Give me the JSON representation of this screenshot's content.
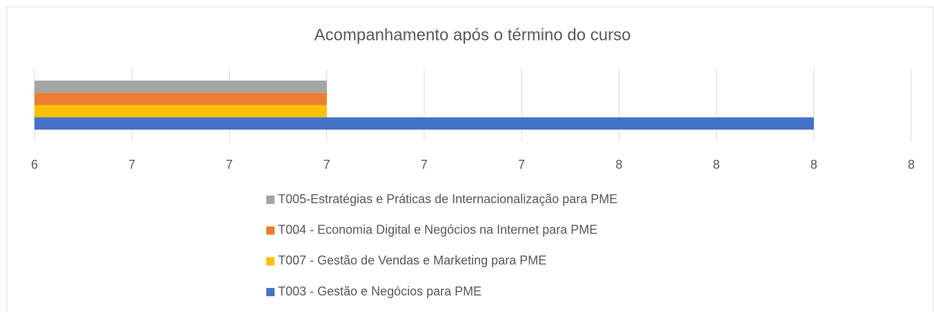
{
  "chart_data": {
    "type": "hbar",
    "title": "Acompanhamento após o término do curso",
    "series": [
      {
        "name": "T005-Estratégias e Práticas de Internacionalização para PME",
        "color": "#a5a5a5",
        "values": [
          7.0
        ]
      },
      {
        "name": "T004 - Economia Digital e Negócios na Internet para PME",
        "color": "#ed7d31",
        "values": [
          7.0
        ]
      },
      {
        "name": "T007 - Gestão de Vendas e Marketing para PME",
        "color": "#ffc000",
        "values": [
          7.0
        ]
      },
      {
        "name": "T003 - Gestão e Negócios para PME",
        "color": "#4472c4",
        "values": [
          8.0
        ]
      }
    ],
    "xlim": [
      6.4,
      8.2
    ],
    "xticks": [
      {
        "value": 6.4,
        "label": "6"
      },
      {
        "value": 6.6,
        "label": "7"
      },
      {
        "value": 6.8,
        "label": "7"
      },
      {
        "value": 7.0,
        "label": "7"
      },
      {
        "value": 7.2,
        "label": "7"
      },
      {
        "value": 7.4,
        "label": "7"
      },
      {
        "value": 7.6,
        "label": "8"
      },
      {
        "value": 7.8,
        "label": "8"
      },
      {
        "value": 8.0,
        "label": "8"
      },
      {
        "value": 8.2,
        "label": "8"
      }
    ],
    "grid": true,
    "legend": "bottom"
  }
}
